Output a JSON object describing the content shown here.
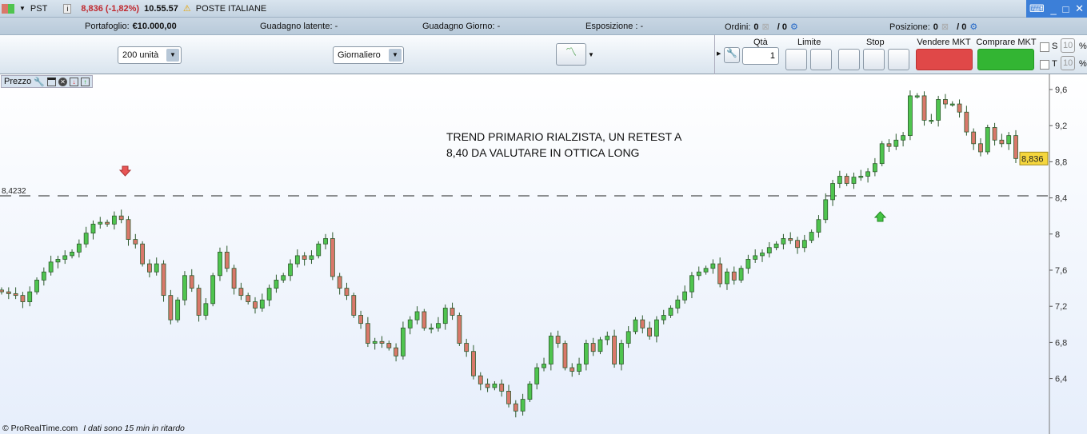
{
  "top": {
    "symbol": "PST",
    "price_change": "8,836 (-1,82%)",
    "time": "10.55.57",
    "name": "POSTE ITALIANE"
  },
  "status": {
    "portafoglio_label": "Portafoglio:",
    "portafoglio_value": "€10.000,00",
    "guadagno_latente": "Guadagno latente:  -",
    "guadagno_giorno": "Guadagno Giorno:  -",
    "esposizione": "Esposizione :  -",
    "ordini_label": "Ordini:",
    "ordini_a": "0",
    "ordini_b": "/ 0",
    "posizione_label": "Posizione:",
    "posizione_a": "0",
    "posizione_b": "/ 0"
  },
  "toolbar": {
    "units": "200 unità",
    "period": "Giornaliero",
    "qta_label": "Qtà",
    "qta_value": "1",
    "limite_label": "Limite",
    "stop_label": "Stop",
    "sell_label": "Vendere MKT",
    "buy_label": "Comprare MKT",
    "s_label": "S",
    "t_label": "T",
    "s_value": "10",
    "t_value": "10",
    "pct": "%"
  },
  "chart_panel": {
    "title": "Prezzo",
    "annotation_line1": "TREND PRIMARIO RIALZISTA, UN RETEST A",
    "annotation_line2": "8,40 DA VALUTARE IN OTTICA LONG",
    "footer_brand": "© ProRealTime.com",
    "footer_note": "I dati sono 15 min in ritardo"
  },
  "colors": {
    "up": "#4fc44f",
    "down": "#d9786a",
    "sell": "#e04848",
    "buy": "#33b533",
    "last_price_bg": "#f5d63d"
  },
  "chart_data": {
    "type": "candlestick",
    "ylim": [
      6.0,
      9.75
    ],
    "yticks": [
      "9,6",
      "9,2",
      "8,8",
      "8,4",
      "8",
      "7,6",
      "7,2",
      "6,8",
      "6,4"
    ],
    "ytick_values": [
      9.6,
      9.2,
      8.8,
      8.4,
      8.0,
      7.6,
      7.2,
      6.8,
      6.4
    ],
    "last_price": 8.836,
    "last_price_label": "8,836",
    "hline": 8.4232,
    "hline_label": "8,4232",
    "closes": [
      7.36,
      7.34,
      7.32,
      7.25,
      7.36,
      7.49,
      7.58,
      7.69,
      7.72,
      7.76,
      7.8,
      7.89,
      8.01,
      8.11,
      8.13,
      8.11,
      8.2,
      8.16,
      7.94,
      7.89,
      7.67,
      7.58,
      7.67,
      7.32,
      7.05,
      7.27,
      7.54,
      7.4,
      7.1,
      7.23,
      7.54,
      7.8,
      7.62,
      7.4,
      7.32,
      7.25,
      7.18,
      7.27,
      7.4,
      7.49,
      7.54,
      7.67,
      7.76,
      7.72,
      7.76,
      7.89,
      7.95,
      7.53,
      7.4,
      7.32,
      7.1,
      7.01,
      6.79,
      6.81,
      6.79,
      6.74,
      6.65,
      6.96,
      7.05,
      7.14,
      6.96,
      6.96,
      7.01,
      7.18,
      7.1,
      6.79,
      6.7,
      6.43,
      6.34,
      6.3,
      6.34,
      6.26,
      6.12,
      6.04,
      6.17,
      6.34,
      6.52,
      6.56,
      6.87,
      6.79,
      6.52,
      6.48,
      6.56,
      6.79,
      6.7,
      6.83,
      6.87,
      6.56,
      6.79,
      6.92,
      7.05,
      6.96,
      6.87,
      7.05,
      7.1,
      7.18,
      7.27,
      7.36,
      7.54,
      7.58,
      7.62,
      7.67,
      7.45,
      7.58,
      7.49,
      7.62,
      7.72,
      7.76,
      7.79,
      7.85,
      7.89,
      7.95,
      7.93,
      7.85,
      7.93,
      8.02,
      8.16,
      8.38,
      8.56,
      8.64,
      8.56,
      8.63,
      8.64,
      8.69,
      8.78,
      9.0,
      8.97,
      9.04,
      9.09,
      9.53,
      9.53,
      9.26,
      9.26,
      9.49,
      9.44,
      9.44,
      9.35,
      9.13,
      9.0,
      8.91,
      9.18,
      9.04,
      9.0,
      9.09,
      8.836
    ],
    "markers": [
      {
        "type": "sell-arrow",
        "near_price": 8.4232
      },
      {
        "type": "buy-arrow",
        "near_price": 8.2
      }
    ]
  }
}
